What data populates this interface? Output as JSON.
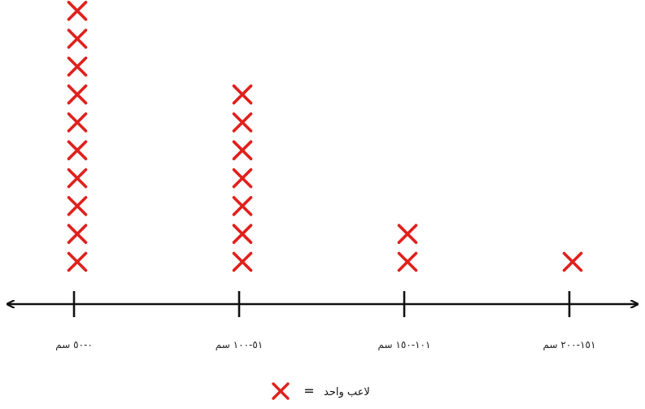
{
  "chart_data": {
    "type": "dot",
    "categories": [
      "٠-٥٠ سم",
      "٥١-١٠٠ سم",
      "١٠١-١٥٠ سم",
      "١٥١-٢٠٠ سم"
    ],
    "values": [
      10,
      7,
      2,
      1
    ],
    "marker_symbol": "✕",
    "marker_color": "#e0201c",
    "axis_color": "#111111",
    "legend": {
      "marker": "✕",
      "equals": "=",
      "label": "لاعب واحد"
    }
  }
}
